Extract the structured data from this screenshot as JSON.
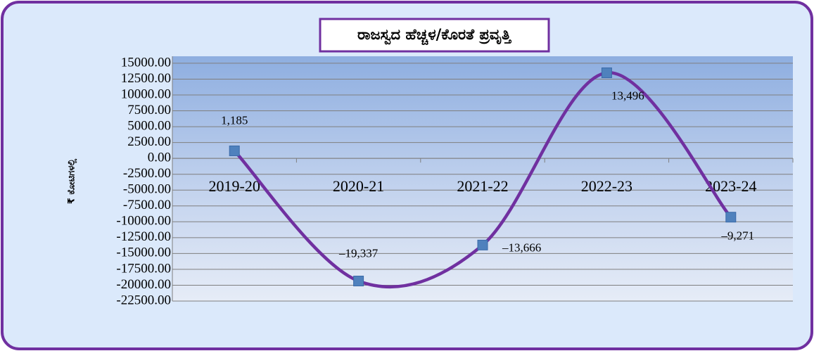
{
  "chart_data": {
    "type": "line",
    "title": "ರಾಜಸ್ವದ ಹೆಚ್ಚಳ/ಕೊರತೆ ಪ್ರವೃತ್ತಿ",
    "y_label": "₹ ಕೋಟಿಗಳಲ್ಲಿ",
    "categories": [
      "2019-20",
      "2020-21",
      "2021-22",
      "2022-23",
      "2023-24"
    ],
    "series": [
      {
        "name": "ರಾಜಸ್ವದ ಹೆಚ್ಚಳ/ಕೊರತೆ",
        "color": "#7030a0",
        "marker_color": "#4f81bd",
        "values": [
          1185,
          -19337,
          -13666,
          13496,
          -9271
        ],
        "value_labels": [
          "1,185",
          "–19,337",
          "–13,666",
          "13,496",
          "–9,271"
        ]
      }
    ],
    "ylim": [
      -22500,
      16100
    ],
    "yticks": [
      {
        "value": 15000,
        "label": "15000.00"
      },
      {
        "value": 12500,
        "label": "12500.00"
      },
      {
        "value": 10000,
        "label": "10000.00"
      },
      {
        "value": 7500,
        "label": "7500.00"
      },
      {
        "value": 5000,
        "label": "5000.00"
      },
      {
        "value": 2500,
        "label": "2500.00"
      },
      {
        "value": 0,
        "label": "0.00"
      },
      {
        "value": -2500,
        "label": "-2500.00"
      },
      {
        "value": -5000,
        "label": "-5000.00"
      },
      {
        "value": -7500,
        "label": "-7500.00"
      },
      {
        "value": -10000,
        "label": "-10000.00"
      },
      {
        "value": -12500,
        "label": "-12500.00"
      },
      {
        "value": -15000,
        "label": "-15000.00"
      },
      {
        "value": -17500,
        "label": "-17500.00"
      },
      {
        "value": -20000,
        "label": "-20000.00"
      },
      {
        "value": -22500,
        "label": "-22500.00"
      }
    ],
    "grid": true
  }
}
